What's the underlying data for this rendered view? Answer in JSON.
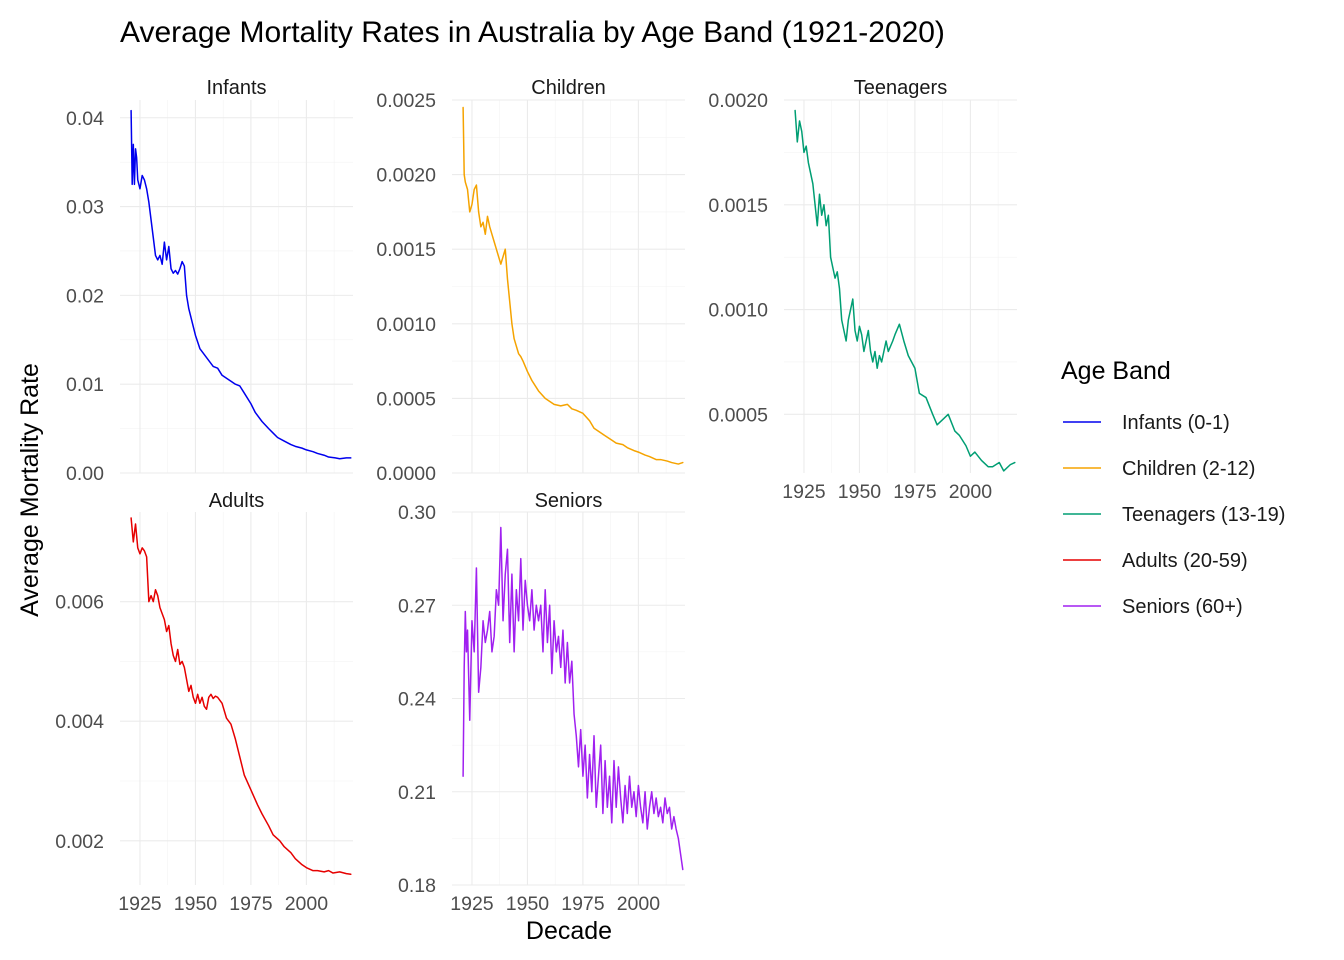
{
  "title": "Average Mortality Rates in Australia by Age Band (1921-2020)",
  "ylabel": "Average Mortality Rate",
  "xlabel": "Decade",
  "legend": {
    "title": "Age Band",
    "position": "right",
    "items": [
      {
        "label": "Infants (0-1)",
        "color": "#0000ee"
      },
      {
        "label": "Children (2-12)",
        "color": "#f5a300"
      },
      {
        "label": "Teenagers (13-19)",
        "color": "#009e73"
      },
      {
        "label": "Adults (20-59)",
        "color": "#e60000"
      },
      {
        "label": "Seniors (60+)",
        "color": "#a020f0"
      }
    ]
  },
  "chart_data": {
    "type": "line",
    "title": "Average Mortality Rates in Australia by Age Band (1921-2020)",
    "xlabel": "Decade",
    "ylabel": "Average Mortality Rate",
    "grid": true,
    "legend_placement": "right",
    "facet_scales": "free",
    "panels": [
      {
        "name": "Infants",
        "legend": "Infants (0-1)",
        "color": "#0000ee",
        "xlim": [
          1916,
          2021
        ],
        "ylim": [
          0,
          0.042
        ],
        "yticks": [
          0,
          0.01,
          0.02,
          0.03,
          0.04
        ],
        "ytick_labels": [
          "0.00",
          "0.01",
          "0.02",
          "0.03",
          "0.04"
        ],
        "xticks": [
          1925,
          1950,
          1975,
          2000
        ],
        "xtick_labels": [
          "1925",
          "1950",
          "1975",
          "2000"
        ],
        "show_x_labels": false,
        "x": [
          1921,
          1921.5,
          1922,
          1922.5,
          1923,
          1923.5,
          1924,
          1925,
          1926,
          1927,
          1928,
          1929,
          1930,
          1931,
          1932,
          1933,
          1934,
          1935,
          1936,
          1937,
          1938,
          1939,
          1940,
          1941,
          1942,
          1943,
          1944,
          1945,
          1946,
          1947,
          1948,
          1950,
          1952,
          1955,
          1958,
          1960,
          1962,
          1965,
          1968,
          1970,
          1972,
          1975,
          1977,
          1980,
          1983,
          1985,
          1987,
          1990,
          1993,
          1995,
          1998,
          2000,
          2003,
          2005,
          2008,
          2010,
          2013,
          2015,
          2018,
          2020
        ],
        "y": [
          0.0408,
          0.0325,
          0.037,
          0.0325,
          0.0365,
          0.0355,
          0.033,
          0.032,
          0.0335,
          0.033,
          0.032,
          0.0305,
          0.0285,
          0.0265,
          0.0245,
          0.024,
          0.0245,
          0.0235,
          0.026,
          0.024,
          0.0255,
          0.023,
          0.0225,
          0.0228,
          0.0224,
          0.023,
          0.0238,
          0.0233,
          0.02,
          0.0185,
          0.0175,
          0.0155,
          0.014,
          0.013,
          0.012,
          0.0118,
          0.011,
          0.0105,
          0.01,
          0.0098,
          0.009,
          0.0078,
          0.0068,
          0.0058,
          0.005,
          0.0045,
          0.004,
          0.0036,
          0.0032,
          0.003,
          0.0028,
          0.0026,
          0.0024,
          0.0022,
          0.002,
          0.0018,
          0.0017,
          0.0016,
          0.0017,
          0.0017
        ]
      },
      {
        "name": "Children",
        "legend": "Children (2-12)",
        "color": "#f5a300",
        "xlim": [
          1916,
          2021
        ],
        "ylim": [
          0,
          0.0025
        ],
        "yticks": [
          0,
          0.0005,
          0.001,
          0.0015,
          0.002,
          0.0025
        ],
        "ytick_labels": [
          "0.0000",
          "0.0005",
          "0.0010",
          "0.0015",
          "0.0020",
          "0.0025"
        ],
        "xticks": [
          1925,
          1950,
          1975,
          2000
        ],
        "xtick_labels": [
          "1925",
          "1950",
          "1975",
          "2000"
        ],
        "show_x_labels": false,
        "x": [
          1921,
          1921.5,
          1922,
          1923,
          1924,
          1925,
          1926,
          1927,
          1928,
          1929,
          1930,
          1931,
          1932,
          1933,
          1934,
          1935,
          1936,
          1937,
          1938,
          1939,
          1940,
          1941,
          1942,
          1943,
          1944,
          1945,
          1946,
          1947,
          1948,
          1950,
          1952,
          1955,
          1958,
          1960,
          1962,
          1965,
          1968,
          1970,
          1972,
          1975,
          1978,
          1980,
          1982,
          1985,
          1988,
          1990,
          1993,
          1995,
          1998,
          2000,
          2003,
          2005,
          2008,
          2010,
          2013,
          2015,
          2018,
          2020
        ],
        "y": [
          0.00245,
          0.002,
          0.00195,
          0.0019,
          0.00175,
          0.0018,
          0.0019,
          0.00193,
          0.00175,
          0.00165,
          0.00168,
          0.0016,
          0.00172,
          0.00165,
          0.0016,
          0.00155,
          0.0015,
          0.00145,
          0.0014,
          0.00145,
          0.0015,
          0.0013,
          0.00115,
          0.001,
          0.0009,
          0.00085,
          0.0008,
          0.00078,
          0.00075,
          0.00068,
          0.00062,
          0.00055,
          0.0005,
          0.00048,
          0.00046,
          0.00045,
          0.00046,
          0.00043,
          0.00042,
          0.0004,
          0.00035,
          0.0003,
          0.00028,
          0.00025,
          0.00022,
          0.0002,
          0.00019,
          0.00017,
          0.00015,
          0.00014,
          0.00012,
          0.00011,
          9e-05,
          9e-05,
          8e-05,
          7e-05,
          6e-05,
          7e-05
        ]
      },
      {
        "name": "Teenagers",
        "legend": "Teenagers (13-19)",
        "color": "#009e73",
        "xlim": [
          1916,
          2021
        ],
        "ylim": [
          0.00022,
          0.002
        ],
        "yticks": [
          0.0005,
          0.001,
          0.0015,
          0.002
        ],
        "ytick_labels": [
          "0.0005",
          "0.0010",
          "0.0015",
          "0.0020"
        ],
        "xticks": [
          1925,
          1950,
          1975,
          2000
        ],
        "xtick_labels": [
          "1925",
          "1950",
          "1975",
          "2000"
        ],
        "show_x_labels": true,
        "x": [
          1921,
          1922,
          1923,
          1924,
          1925,
          1926,
          1927,
          1928,
          1929,
          1930,
          1931,
          1932,
          1933,
          1934,
          1935,
          1936,
          1937,
          1938,
          1939,
          1940,
          1941,
          1942,
          1943,
          1944,
          1945,
          1946,
          1947,
          1948,
          1949,
          1950,
          1951,
          1952,
          1953,
          1954,
          1955,
          1956,
          1957,
          1958,
          1959,
          1960,
          1962,
          1963,
          1965,
          1966,
          1968,
          1970,
          1972,
          1975,
          1977,
          1980,
          1983,
          1985,
          1988,
          1990,
          1993,
          1995,
          1998,
          2000,
          2002,
          2005,
          2008,
          2010,
          2013,
          2015,
          2018,
          2020
        ],
        "y": [
          0.00195,
          0.0018,
          0.0019,
          0.00185,
          0.00175,
          0.00178,
          0.0017,
          0.00165,
          0.0016,
          0.0015,
          0.0014,
          0.00155,
          0.00145,
          0.0015,
          0.0014,
          0.00145,
          0.00125,
          0.0012,
          0.00115,
          0.00118,
          0.0011,
          0.00095,
          0.0009,
          0.00085,
          0.00095,
          0.001,
          0.00105,
          0.0009,
          0.00085,
          0.00092,
          0.00088,
          0.0008,
          0.00085,
          0.0009,
          0.0008,
          0.00075,
          0.0008,
          0.00072,
          0.00078,
          0.00075,
          0.00085,
          0.0008,
          0.00085,
          0.00088,
          0.00093,
          0.00085,
          0.00078,
          0.00072,
          0.0006,
          0.00058,
          0.0005,
          0.00045,
          0.00048,
          0.0005,
          0.00042,
          0.0004,
          0.00035,
          0.0003,
          0.00032,
          0.00028,
          0.00025,
          0.00025,
          0.00027,
          0.00023,
          0.00026,
          0.00027
        ]
      },
      {
        "name": "Adults",
        "legend": "Adults (20-59)",
        "color": "#e60000",
        "xlim": [
          1916,
          2021
        ],
        "ylim": [
          0.00126,
          0.0075
        ],
        "yticks": [
          0.002,
          0.004,
          0.006
        ],
        "ytick_labels": [
          "0.002",
          "0.004",
          "0.006"
        ],
        "xticks": [
          1925,
          1950,
          1975,
          2000
        ],
        "xtick_labels": [
          "1925",
          "1950",
          "1975",
          "2000"
        ],
        "show_x_labels": true,
        "x": [
          1921,
          1922,
          1923,
          1924,
          1925,
          1926,
          1927,
          1928,
          1929,
          1930,
          1931,
          1932,
          1933,
          1934,
          1935,
          1936,
          1937,
          1938,
          1939,
          1940,
          1941,
          1942,
          1943,
          1944,
          1945,
          1946,
          1947,
          1948,
          1949,
          1950,
          1951,
          1952,
          1953,
          1954,
          1955,
          1956,
          1957,
          1958,
          1959,
          1960,
          1962,
          1964,
          1965,
          1966,
          1968,
          1970,
          1972,
          1975,
          1978,
          1980,
          1983,
          1985,
          1988,
          1990,
          1993,
          1995,
          1998,
          2000,
          2003,
          2005,
          2008,
          2010,
          2012,
          2015,
          2018,
          2020
        ],
        "y": [
          0.0074,
          0.007,
          0.0073,
          0.0069,
          0.0068,
          0.0069,
          0.00685,
          0.00675,
          0.006,
          0.0061,
          0.006,
          0.0062,
          0.0061,
          0.0059,
          0.0058,
          0.0057,
          0.0055,
          0.0056,
          0.0053,
          0.0051,
          0.005,
          0.0052,
          0.00495,
          0.005,
          0.0049,
          0.0047,
          0.0045,
          0.0046,
          0.0044,
          0.0043,
          0.00445,
          0.0043,
          0.0044,
          0.00425,
          0.0042,
          0.0044,
          0.00445,
          0.00438,
          0.00442,
          0.0044,
          0.0043,
          0.00405,
          0.004,
          0.00395,
          0.0037,
          0.0034,
          0.0031,
          0.00285,
          0.0026,
          0.00245,
          0.00225,
          0.0021,
          0.002,
          0.0019,
          0.0018,
          0.0017,
          0.0016,
          0.00155,
          0.0015,
          0.0015,
          0.00148,
          0.0015,
          0.00146,
          0.00148,
          0.00145,
          0.00144
        ]
      },
      {
        "name": "Seniors",
        "legend": "Seniors (60+)",
        "color": "#a020f0",
        "xlim": [
          1916,
          2021
        ],
        "ylim": [
          0.18,
          0.3
        ],
        "yticks": [
          0.18,
          0.21,
          0.24,
          0.27,
          0.3
        ],
        "ytick_labels": [
          "0.18",
          "0.21",
          "0.24",
          "0.27",
          "0.30"
        ],
        "xticks": [
          1925,
          1950,
          1975,
          2000
        ],
        "xtick_labels": [
          "1925",
          "1950",
          "1975",
          "2000"
        ],
        "show_x_labels": true,
        "x": [
          1921,
          1921.5,
          1922,
          1922.5,
          1923,
          1924,
          1925,
          1926,
          1927,
          1928,
          1929,
          1930,
          1931,
          1932,
          1933,
          1934,
          1935,
          1936,
          1937,
          1938,
          1939,
          1940,
          1941,
          1942,
          1943,
          1944,
          1945,
          1946,
          1947,
          1948,
          1949,
          1950,
          1951,
          1952,
          1953,
          1954,
          1955,
          1956,
          1957,
          1958,
          1959,
          1960,
          1961,
          1962,
          1963,
          1964,
          1965,
          1966,
          1967,
          1968,
          1969,
          1970,
          1971,
          1972,
          1973,
          1974,
          1975,
          1976,
          1977,
          1978,
          1979,
          1980,
          1981,
          1982,
          1983,
          1984,
          1985,
          1986,
          1987,
          1988,
          1989,
          1990,
          1991,
          1992,
          1993,
          1994,
          1995,
          1996,
          1997,
          1998,
          1999,
          2000,
          2001,
          2002,
          2003,
          2004,
          2005,
          2006,
          2007,
          2008,
          2009,
          2010,
          2011,
          2012,
          2013,
          2014,
          2015,
          2016,
          2017,
          2018,
          2019,
          2020
        ],
        "y": [
          0.215,
          0.25,
          0.268,
          0.255,
          0.262,
          0.233,
          0.265,
          0.255,
          0.282,
          0.242,
          0.25,
          0.265,
          0.258,
          0.262,
          0.268,
          0.255,
          0.26,
          0.275,
          0.27,
          0.295,
          0.265,
          0.28,
          0.288,
          0.258,
          0.28,
          0.255,
          0.275,
          0.265,
          0.285,
          0.262,
          0.278,
          0.27,
          0.265,
          0.275,
          0.262,
          0.27,
          0.265,
          0.27,
          0.255,
          0.275,
          0.258,
          0.27,
          0.248,
          0.265,
          0.255,
          0.26,
          0.25,
          0.262,
          0.245,
          0.258,
          0.245,
          0.252,
          0.235,
          0.228,
          0.218,
          0.23,
          0.215,
          0.225,
          0.208,
          0.222,
          0.21,
          0.228,
          0.205,
          0.215,
          0.225,
          0.203,
          0.22,
          0.205,
          0.215,
          0.2,
          0.22,
          0.205,
          0.218,
          0.208,
          0.2,
          0.212,
          0.203,
          0.215,
          0.205,
          0.21,
          0.202,
          0.212,
          0.205,
          0.2,
          0.21,
          0.198,
          0.205,
          0.21,
          0.203,
          0.208,
          0.202,
          0.205,
          0.2,
          0.208,
          0.203,
          0.205,
          0.198,
          0.202,
          0.198,
          0.195,
          0.19,
          0.185
        ]
      }
    ]
  }
}
